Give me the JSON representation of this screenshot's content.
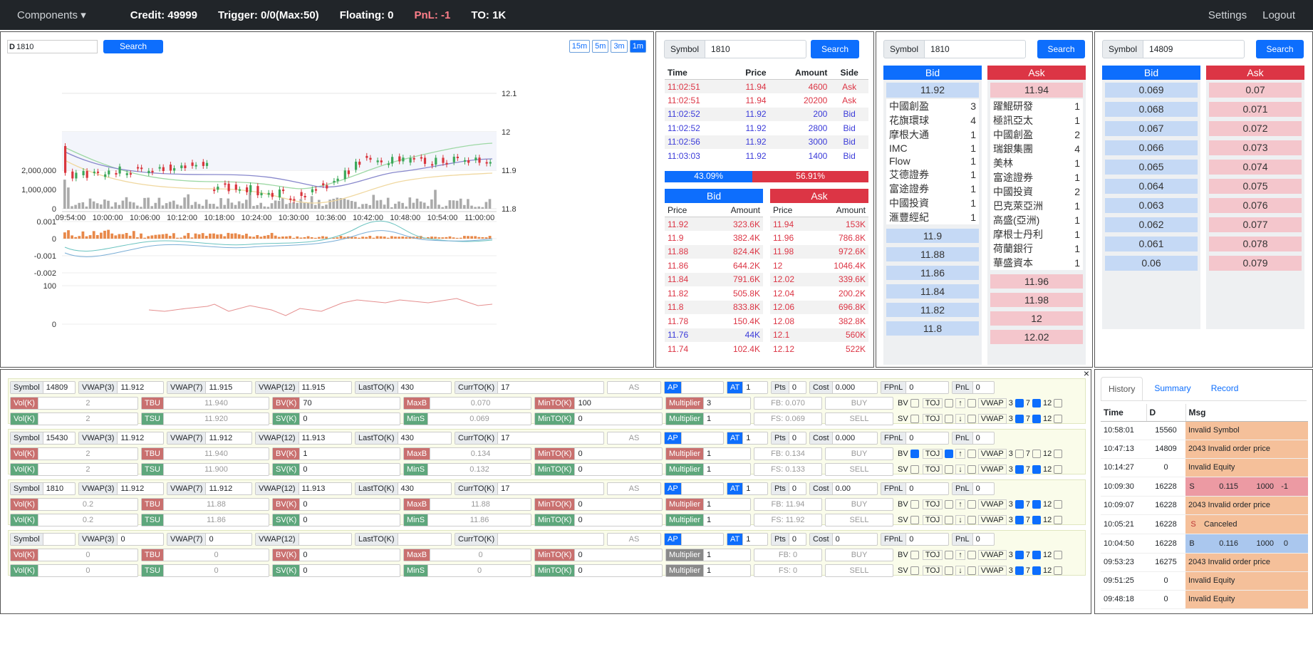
{
  "topbar": {
    "components": "Components ▾",
    "credit": "Credit: 49999",
    "trigger": "Trigger: 0/0(Max:50)",
    "floating": "Floating: 0",
    "pnl": "PnL: -1",
    "to": "TO: 1K",
    "settings": "Settings",
    "logout": "Logout"
  },
  "chart": {
    "prefix": "D",
    "symbol": "1810",
    "search": "Search",
    "tf": [
      "15m",
      "5m",
      "3m",
      "1m"
    ],
    "price_ticks": [
      "12.1",
      "12",
      "11.9",
      "11.8"
    ],
    "vol_ticks": [
      "2,000,000",
      "1,000,000",
      "0"
    ],
    "time_ticks": [
      "09:54:00",
      "10:00:00",
      "10:06:00",
      "10:12:00",
      "10:18:00",
      "10:24:00",
      "10:30:00",
      "10:36:00",
      "10:42:00",
      "10:48:00",
      "10:54:00",
      "11:00:00"
    ],
    "osc_ticks": [
      "0.001",
      "0",
      "-0.001",
      "-0.002"
    ],
    "low_ticks": [
      "100",
      "0"
    ]
  },
  "trades": {
    "label": "Symbol",
    "symbol": "1810",
    "search": "Search",
    "head": [
      "Time",
      "Price",
      "Amount",
      "Side"
    ],
    "rows": [
      [
        "11:02:51",
        "11.94",
        "4600",
        "Ask"
      ],
      [
        "11:02:51",
        "11.94",
        "20200",
        "Ask"
      ],
      [
        "11:02:52",
        "11.92",
        "200",
        "Bid"
      ],
      [
        "11:02:52",
        "11.92",
        "2800",
        "Bid"
      ],
      [
        "11:02:56",
        "11.92",
        "3000",
        "Bid"
      ],
      [
        "11:03:03",
        "11.92",
        "1400",
        "Bid"
      ]
    ],
    "bidpct": "43.09%",
    "askpct": "56.91%",
    "bid": "Bid",
    "ask": "Ask",
    "phead": "Price",
    "ahead": "Amount",
    "bids": [
      [
        "11.92",
        "323.6K"
      ],
      [
        "11.9",
        "382.4K"
      ],
      [
        "11.88",
        "824.4K"
      ],
      [
        "11.86",
        "644.2K"
      ],
      [
        "11.84",
        "791.6K"
      ],
      [
        "11.82",
        "505.8K"
      ],
      [
        "11.8",
        "833.8K"
      ],
      [
        "11.78",
        "150.4K"
      ],
      [
        "11.76",
        "44K"
      ],
      [
        "11.74",
        "102.4K"
      ]
    ],
    "asks": [
      [
        "11.94",
        "153K"
      ],
      [
        "11.96",
        "786.8K"
      ],
      [
        "11.98",
        "972.6K"
      ],
      [
        "12",
        "1046.4K"
      ],
      [
        "12.02",
        "339.6K"
      ],
      [
        "12.04",
        "200.2K"
      ],
      [
        "12.06",
        "696.8K"
      ],
      [
        "12.08",
        "382.8K"
      ],
      [
        "12.1",
        "560K"
      ],
      [
        "12.12",
        "522K"
      ]
    ]
  },
  "book1": {
    "label": "Symbol",
    "symbol": "1810",
    "search": "Search",
    "bid": "Bid",
    "ask": "Ask",
    "bidtop": "11.92",
    "asktop": "11.94",
    "bidbrokers": [
      [
        "中國創盈",
        "3"
      ],
      [
        "花旗環球",
        "4"
      ],
      [
        "摩根大通",
        "1"
      ],
      [
        "IMC",
        "1"
      ],
      [
        "Flow",
        "1"
      ],
      [
        "艾德證券",
        "1"
      ],
      [
        "富途證券",
        "1"
      ],
      [
        "中國投資",
        "1"
      ],
      [
        "滙豐經紀",
        "1"
      ]
    ],
    "askbrokers": [
      [
        "躍鯤研發",
        "1"
      ],
      [
        "極訊亞太",
        "1"
      ],
      [
        "中國創盈",
        "2"
      ],
      [
        "瑞銀集團",
        "4"
      ],
      [
        "美林",
        "1"
      ],
      [
        "富途證券",
        "1"
      ],
      [
        "中國投資",
        "2"
      ],
      [
        "巴克萊亞洲",
        "1"
      ],
      [
        "高盛(亞洲)",
        "1"
      ],
      [
        "摩根士丹利",
        "1"
      ],
      [
        "荷蘭銀行",
        "1"
      ],
      [
        "華盛資本",
        "1"
      ]
    ],
    "bidlevels": [
      "11.9",
      "11.88",
      "11.86",
      "11.84",
      "11.82",
      "11.8"
    ],
    "asklevels": [
      "11.96",
      "11.98",
      "12",
      "12.02"
    ]
  },
  "book2": {
    "label": "Symbol",
    "symbol": "14809",
    "search": "Search",
    "bid": "Bid",
    "ask": "Ask",
    "bids": [
      "0.069",
      "0.068",
      "0.067",
      "0.066",
      "0.065",
      "0.064",
      "0.063",
      "0.062",
      "0.061",
      "0.06"
    ],
    "asks": [
      "0.07",
      "0.071",
      "0.072",
      "0.073",
      "0.074",
      "0.075",
      "0.076",
      "0.077",
      "0.078",
      "0.079"
    ]
  },
  "strategies": [
    {
      "symbol": "14809",
      "vwap3": "11.912",
      "vwap7": "11.915",
      "vwap12": "11.915",
      "lastto": "430",
      "currto": "17",
      "at": "1",
      "pts": "0",
      "cost": "0.000",
      "fpnl": "0",
      "pnl": "0",
      "b": {
        "vol": "2",
        "tbu": "11.940",
        "bv": "70",
        "max": "0.070",
        "minto": "100",
        "mult": "3",
        "fb": "FB: 0.070",
        "act": "BUY"
      },
      "s": {
        "vol": "2",
        "tsu": "11.920",
        "sv": "0",
        "min": "0.069",
        "minto": "0",
        "mult": "1",
        "fs": "FS: 0.069",
        "act": "SELL"
      },
      "bvon": false,
      "tojon": false
    },
    {
      "symbol": "15430",
      "vwap3": "11.912",
      "vwap7": "11.912",
      "vwap12": "11.913",
      "lastto": "430",
      "currto": "17",
      "at": "1",
      "pts": "0",
      "cost": "0.000",
      "fpnl": "0",
      "pnl": "0",
      "b": {
        "vol": "2",
        "tbu": "11.940",
        "bv": "1",
        "max": "0.134",
        "minto": "0",
        "mult": "1",
        "fb": "FB: 0.134",
        "act": "BUY"
      },
      "s": {
        "vol": "2",
        "tsu": "11.900",
        "sv": "0",
        "min": "0.132",
        "minto": "0",
        "mult": "1",
        "fs": "FS: 0.133",
        "act": "SELL"
      },
      "bvon": true,
      "tojon": true
    },
    {
      "symbol": "1810",
      "vwap3": "11.912",
      "vwap7": "11.912",
      "vwap12": "11.913",
      "lastto": "430",
      "currto": "17",
      "at": "1",
      "pts": "0",
      "cost": "0.00",
      "fpnl": "0",
      "pnl": "0",
      "b": {
        "vol": "0.2",
        "tbu": "11.88",
        "bv": "0",
        "max": "11.88",
        "minto": "0",
        "mult": "1",
        "fb": "FB: 11.94",
        "act": "BUY"
      },
      "s": {
        "vol": "0.2",
        "tsu": "11.86",
        "sv": "0",
        "min": "11.86",
        "minto": "0",
        "mult": "1",
        "fs": "FS: 11.92",
        "act": "SELL"
      },
      "bvon": false,
      "tojon": false
    },
    {
      "symbol": "",
      "vwap3": "0",
      "vwap7": "0",
      "vwap12": "",
      "lastto": "",
      "currto": "",
      "at": "1",
      "pts": "0",
      "cost": "0",
      "fpnl": "0",
      "pnl": "0",
      "b": {
        "vol": "0",
        "tbu": "0",
        "bv": "0",
        "max": "0",
        "minto": "0",
        "mult": "1",
        "fb": "FB: 0",
        "act": "BUY"
      },
      "s": {
        "vol": "0",
        "tsu": "0",
        "sv": "0",
        "min": "0",
        "minto": "0",
        "mult": "1",
        "fs": "FS: 0",
        "act": "SELL"
      },
      "bvon": false,
      "tojon": false
    }
  ],
  "labels": {
    "symbol": "Symbol",
    "vwap3": "VWAP(3)",
    "vwap7": "VWAP(7)",
    "vwap12": "VWAP(12)",
    "lastto": "LastTO(K)",
    "currto": "CurrTO(K)",
    "as": "AS",
    "ap": "AP",
    "at": "AT",
    "pts": "Pts",
    "cost": "Cost",
    "fpnl": "FPnL",
    "pnl": "PnL",
    "vol": "Vol(K)",
    "tbu": "TBU",
    "tsu": "TSU",
    "bv": "BV(K)",
    "sv": "SV(K)",
    "maxb": "MaxB",
    "mins": "MinS",
    "minto": "MinTO(K)",
    "mult": "Multiplier",
    "bvchk": "BV",
    "svchk": "SV",
    "toj": "TOJ",
    "up": "↑",
    "down": "↓",
    "vwap": "VWAP",
    "n3": "3",
    "n7": "7",
    "n12": "12"
  },
  "history": {
    "tabs": [
      "History",
      "Summary",
      "Record"
    ],
    "head": [
      "Time",
      "D",
      "Msg"
    ],
    "rows": [
      {
        "t": "10:58:01",
        "d": "15560",
        "msg": "Invalid Symbol"
      },
      {
        "t": "10:47:13",
        "d": "14809",
        "msg": "2043 Invalid order price"
      },
      {
        "t": "10:14:27",
        "d": "0",
        "msg": "Invalid Equity"
      },
      {
        "t": "10:09:30",
        "d": "16228",
        "side": "S",
        "p": "0.115",
        "q": "1000",
        "x": "-1"
      },
      {
        "t": "10:09:07",
        "d": "16228",
        "msg": "2043 Invalid order price"
      },
      {
        "t": "10:05:21",
        "d": "16228",
        "side": "S",
        "extra": "Canceled"
      },
      {
        "t": "10:04:50",
        "d": "16228",
        "side": "B",
        "p": "0.116",
        "q": "1000",
        "x": "0"
      },
      {
        "t": "09:53:23",
        "d": "16275",
        "msg": "2043 Invalid order price"
      },
      {
        "t": "09:51:25",
        "d": "0",
        "msg": "Invalid Equity"
      },
      {
        "t": "09:48:18",
        "d": "0",
        "msg": "Invalid Equity"
      }
    ]
  },
  "colors": {
    "blue": "#0d6efd",
    "red": "#dc3545",
    "topbar": "#212529"
  }
}
